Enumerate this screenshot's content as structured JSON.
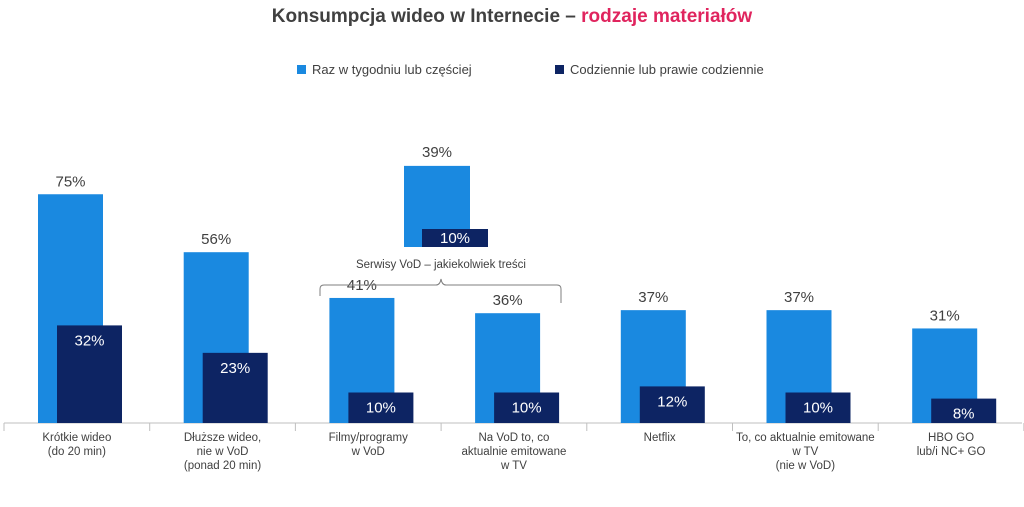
{
  "title": {
    "main": "Konsumpcja wideo w Internecie – ",
    "accent": "rodzaje materiałów"
  },
  "colors": {
    "weekly": "#1a89e0",
    "daily": "#0d2463",
    "accent": "#e0245e",
    "axis": "#bfbfbf",
    "bracket": "#7f7f7f"
  },
  "legend": {
    "weekly": "Raz w tygodniu lub częściej",
    "daily": "Codziennie lub prawie codziennie"
  },
  "chart_data": {
    "type": "bar",
    "ylim": [
      0,
      100
    ],
    "categories": [
      [
        "Krótkie wideo",
        "(do 20 min)"
      ],
      [
        "Dłuższe wideo,",
        "nie w VoD",
        "(ponad 20 min)"
      ],
      [
        "Filmy/programy",
        "w VoD"
      ],
      [
        "Na VoD to, co",
        "aktualnie emitowane",
        "w TV"
      ],
      [
        "Netflix"
      ],
      [
        "To, co aktualnie emitowane",
        "w TV",
        "(nie w VoD)"
      ],
      [
        "HBO GO",
        "lub/i NC+ GO"
      ]
    ],
    "series": [
      {
        "name": "Raz w tygodniu lub częściej",
        "values": [
          75,
          56,
          41,
          36,
          37,
          37,
          31
        ],
        "labels": [
          "75%",
          "56%",
          "41%",
          "36%",
          "37%",
          "37%",
          "31%"
        ]
      },
      {
        "name": "Codziennie lub prawie codziennie",
        "values": [
          32,
          23,
          10,
          10,
          12,
          10,
          8
        ],
        "labels": [
          "32%",
          "23%",
          "10%",
          "10%",
          "12%",
          "10%",
          "8%"
        ]
      }
    ],
    "inset": {
      "label": "Serwisy VoD – jakiekolwiek treści",
      "weekly": 39,
      "daily": 10,
      "weekly_label": "39%",
      "daily_label": "10%"
    }
  }
}
